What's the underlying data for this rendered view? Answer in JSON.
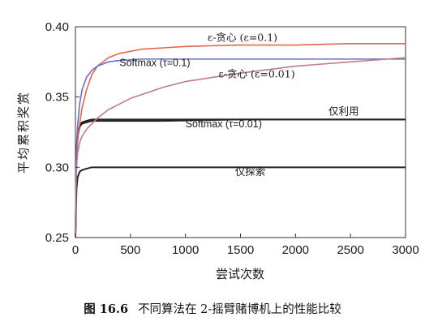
{
  "chart_data": {
    "type": "line",
    "xlabel": "尝试次数",
    "ylabel": "平均累积奖赏",
    "xlim": [
      0,
      3000
    ],
    "ylim": [
      0.25,
      0.4
    ],
    "xticks": [
      0,
      500,
      1000,
      1500,
      2000,
      2500,
      3000
    ],
    "yticks": [
      0.25,
      0.3,
      0.35,
      0.4
    ],
    "ytick_labels": [
      "0.25",
      "0.30",
      "0.35",
      "0.40"
    ],
    "grid": false,
    "series": [
      {
        "name": "ε-贪心 (ε=0.1)",
        "color": "#e0684f",
        "x": [
          0,
          5,
          10,
          20,
          40,
          60,
          100,
          150,
          200,
          300,
          400,
          600,
          800,
          1000,
          1500,
          2000,
          2500,
          3000
        ],
        "y": [
          0.25,
          0.29,
          0.305,
          0.318,
          0.332,
          0.342,
          0.355,
          0.366,
          0.372,
          0.378,
          0.381,
          0.384,
          0.385,
          0.386,
          0.387,
          0.387,
          0.388,
          0.388
        ]
      },
      {
        "name": "Softmax (τ=0.1)",
        "color": "#6a6fc0",
        "x": [
          0,
          5,
          10,
          20,
          40,
          60,
          100,
          150,
          200,
          300,
          400,
          600,
          1000,
          1500,
          2000,
          2500,
          3000
        ],
        "y": [
          0.25,
          0.3,
          0.315,
          0.33,
          0.346,
          0.355,
          0.364,
          0.369,
          0.372,
          0.375,
          0.376,
          0.377,
          0.377,
          0.377,
          0.377,
          0.377,
          0.377
        ]
      },
      {
        "name": "ε-贪心 (ε=0.01)",
        "color": "#c07a8a",
        "x": [
          0,
          5,
          10,
          20,
          40,
          60,
          100,
          200,
          300,
          500,
          800,
          1000,
          1500,
          2000,
          2500,
          3000
        ],
        "y": [
          0.25,
          0.285,
          0.3,
          0.31,
          0.318,
          0.322,
          0.327,
          0.335,
          0.341,
          0.349,
          0.357,
          0.361,
          0.367,
          0.372,
          0.375,
          0.378
        ]
      },
      {
        "name": "仅利用",
        "color": "#222222",
        "x": [
          0,
          5,
          10,
          20,
          40,
          60,
          100,
          150,
          200,
          400,
          800,
          1500,
          3000
        ],
        "y": [
          0.25,
          0.28,
          0.31,
          0.322,
          0.329,
          0.331,
          0.332,
          0.333,
          0.333,
          0.333,
          0.333,
          0.334,
          0.334
        ]
      },
      {
        "name": "Softmax (τ=0.01)",
        "color": "#222222",
        "x": [
          0,
          5,
          10,
          20,
          40,
          60,
          100,
          150,
          200,
          400,
          800,
          1500,
          3000
        ],
        "y": [
          0.25,
          0.283,
          0.312,
          0.324,
          0.33,
          0.332,
          0.333,
          0.334,
          0.334,
          0.334,
          0.334,
          0.334,
          0.334
        ]
      },
      {
        "name": "仅探索",
        "color": "#222222",
        "x": [
          0,
          5,
          10,
          20,
          40,
          60,
          100,
          150,
          200,
          400,
          800,
          1500,
          3000
        ],
        "y": [
          0.25,
          0.27,
          0.285,
          0.293,
          0.297,
          0.298,
          0.299,
          0.3,
          0.3,
          0.3,
          0.3,
          0.3,
          0.3
        ]
      }
    ],
    "annotations": [
      {
        "text": "ε-贪心 (ε=0.1)",
        "x": 1200,
        "y": 0.39,
        "style": "serif"
      },
      {
        "text": "Softmax (τ=0.1)",
        "x": 400,
        "y": 0.372,
        "style": "sans"
      },
      {
        "text": "ε-贪心 (ε=0.01)",
        "x": 1300,
        "y": 0.364,
        "style": "serif"
      },
      {
        "text": "仅利用",
        "x": 2300,
        "y": 0.3375,
        "style": "serif"
      },
      {
        "text": "Softmax (τ=0.01)",
        "x": 1000,
        "y": 0.3285,
        "style": "sans"
      },
      {
        "text": "仅探索",
        "x": 1450,
        "y": 0.2945,
        "style": "serif"
      }
    ]
  },
  "caption": {
    "figure_number": "图 16.6",
    "text": "不同算法在 2-摇臂赌博机上的性能比较"
  }
}
